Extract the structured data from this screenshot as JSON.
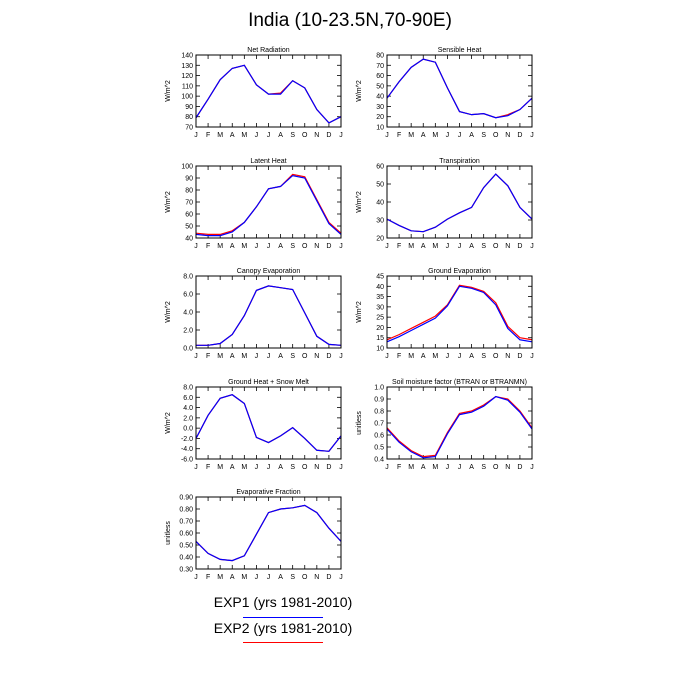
{
  "figure_title": "India (10-23.5N,70-90E)",
  "colors": {
    "exp1": "#0000ff",
    "exp2": "#ff0000"
  },
  "legend": [
    {
      "label": "EXP1 (yrs 1981-2010)",
      "color": "#0000ff"
    },
    {
      "label": "EXP2 (yrs 1981-2010)",
      "color": "#ff0000"
    }
  ],
  "chart_data": [
    {
      "type": "line",
      "title": "Net Radiation",
      "ylabel": "W/m^2",
      "categories": [
        "J",
        "F",
        "M",
        "A",
        "M",
        "J",
        "J",
        "A",
        "S",
        "O",
        "N",
        "D",
        "J"
      ],
      "yticks": [
        "70",
        "80",
        "90",
        "100",
        "110",
        "120",
        "130",
        "140"
      ],
      "ylim": [
        70,
        140
      ],
      "series": [
        {
          "values": [
            79,
            97,
            116,
            127,
            130,
            111,
            102,
            102,
            115,
            108,
            87,
            74,
            80
          ]
        },
        {
          "values": [
            79,
            97,
            116,
            127,
            130,
            111,
            102,
            103,
            115,
            108,
            87,
            74,
            80
          ]
        }
      ]
    },
    {
      "type": "line",
      "title": "Sensible Heat",
      "ylabel": "W/m^2",
      "categories": [
        "J",
        "F",
        "M",
        "A",
        "M",
        "J",
        "J",
        "A",
        "S",
        "O",
        "N",
        "D",
        "J"
      ],
      "yticks": [
        "10",
        "20",
        "30",
        "40",
        "50",
        "60",
        "70",
        "80"
      ],
      "ylim": [
        10,
        80
      ],
      "series": [
        {
          "values": [
            38,
            54,
            68,
            76,
            73,
            48,
            25,
            22,
            23,
            19,
            21,
            27,
            38
          ]
        },
        {
          "values": [
            38,
            54,
            68,
            76,
            73,
            48,
            25,
            22,
            23,
            19,
            22,
            27,
            38
          ]
        }
      ]
    },
    {
      "type": "line",
      "title": "Latent Heat",
      "ylabel": "W/m^2",
      "categories": [
        "J",
        "F",
        "M",
        "A",
        "M",
        "J",
        "J",
        "A",
        "S",
        "O",
        "N",
        "D",
        "J"
      ],
      "yticks": [
        "40",
        "50",
        "60",
        "70",
        "80",
        "90",
        "100"
      ],
      "ylim": [
        40,
        100
      ],
      "series": [
        {
          "values": [
            43,
            42,
            42,
            45,
            53,
            66,
            81,
            83,
            92,
            90,
            71,
            52,
            43
          ]
        },
        {
          "values": [
            44,
            43,
            43,
            46,
            53,
            66,
            81,
            83,
            93,
            91,
            72,
            53,
            44
          ]
        }
      ]
    },
    {
      "type": "line",
      "title": "Transpiration",
      "ylabel": "W/m^2",
      "categories": [
        "J",
        "F",
        "M",
        "A",
        "M",
        "J",
        "J",
        "A",
        "S",
        "O",
        "N",
        "D",
        "J"
      ],
      "yticks": [
        "20",
        "30",
        "40",
        "50",
        "60"
      ],
      "ylim": [
        20,
        60
      ],
      "series": [
        {
          "values": [
            30.5,
            27,
            24,
            23.5,
            26,
            30.5,
            34,
            37,
            48,
            55.5,
            49,
            37,
            30.5
          ]
        },
        {
          "values": [
            30.5,
            27,
            24,
            23.5,
            26,
            30.5,
            34,
            37,
            48,
            55.5,
            49,
            37,
            30.5
          ]
        }
      ]
    },
    {
      "type": "line",
      "title": "Canopy Evaporation",
      "ylabel": "W/m^2",
      "categories": [
        "J",
        "F",
        "M",
        "A",
        "M",
        "J",
        "J",
        "A",
        "S",
        "O",
        "N",
        "D",
        "J"
      ],
      "yticks": [
        "0.0",
        "2.0",
        "4.0",
        "6.0",
        "8.0"
      ],
      "ylim": [
        0,
        8
      ],
      "series": [
        {
          "values": [
            0.3,
            0.3,
            0.5,
            1.5,
            3.6,
            6.4,
            6.9,
            6.7,
            6.5,
            3.9,
            1.3,
            0.4,
            0.3
          ]
        },
        {
          "values": [
            0.3,
            0.3,
            0.5,
            1.5,
            3.6,
            6.4,
            6.9,
            6.7,
            6.5,
            3.9,
            1.3,
            0.4,
            0.3
          ]
        }
      ]
    },
    {
      "type": "line",
      "title": "Ground Evaporation",
      "ylabel": "W/m^2",
      "categories": [
        "J",
        "F",
        "M",
        "A",
        "M",
        "J",
        "J",
        "A",
        "S",
        "O",
        "N",
        "D",
        "J"
      ],
      "yticks": [
        "10",
        "15",
        "20",
        "25",
        "30",
        "35",
        "40",
        "45"
      ],
      "ylim": [
        10,
        45
      ],
      "series": [
        {
          "values": [
            13,
            15.5,
            18.5,
            21.5,
            24.5,
            30.5,
            40,
            39,
            37,
            31,
            19.5,
            14,
            13
          ]
        },
        {
          "values": [
            14,
            16.5,
            19.5,
            22.5,
            25.5,
            31,
            40.5,
            39.5,
            37.5,
            32,
            20.5,
            15,
            14
          ]
        }
      ]
    },
    {
      "type": "line",
      "title": "Ground Heat + Snow Melt",
      "ylabel": "W/m^2",
      "categories": [
        "J",
        "F",
        "M",
        "A",
        "M",
        "J",
        "J",
        "A",
        "S",
        "O",
        "N",
        "D",
        "J"
      ],
      "yticks": [
        "-6.0",
        "-4.0",
        "-2.0",
        "0.0",
        "2.0",
        "4.0",
        "6.0",
        "8.0"
      ],
      "ylim": [
        -6,
        8
      ],
      "series": [
        {
          "values": [
            -2,
            2.5,
            5.8,
            6.5,
            4.8,
            -1.8,
            -2.8,
            -1.5,
            0.1,
            -2,
            -4.3,
            -4.5,
            -1.5
          ]
        },
        {
          "values": [
            -2,
            2.5,
            5.8,
            6.5,
            4.8,
            -1.8,
            -2.8,
            -1.5,
            0.1,
            -2,
            -4.3,
            -4.5,
            -1.5
          ]
        }
      ]
    },
    {
      "type": "line",
      "title": "Soil moisture factor (BTRAN or BTRANMN)",
      "ylabel": "unitless",
      "categories": [
        "J",
        "F",
        "M",
        "A",
        "M",
        "J",
        "J",
        "A",
        "S",
        "O",
        "N",
        "D",
        "J"
      ],
      "yticks": [
        "0.4",
        "0.5",
        "0.6",
        "0.7",
        "0.8",
        "0.9",
        "1.0"
      ],
      "ylim": [
        0.4,
        1.0
      ],
      "series": [
        {
          "values": [
            0.65,
            0.54,
            0.46,
            0.41,
            0.42,
            0.61,
            0.77,
            0.79,
            0.84,
            0.92,
            0.89,
            0.79,
            0.65
          ]
        },
        {
          "values": [
            0.66,
            0.55,
            0.47,
            0.42,
            0.43,
            0.62,
            0.78,
            0.8,
            0.85,
            0.92,
            0.9,
            0.8,
            0.66
          ]
        }
      ]
    },
    {
      "type": "line",
      "title": "Evaporative Fraction",
      "ylabel": "unitless",
      "categories": [
        "J",
        "F",
        "M",
        "A",
        "M",
        "J",
        "J",
        "A",
        "S",
        "O",
        "N",
        "D",
        "J"
      ],
      "yticks": [
        "0.30",
        "0.40",
        "0.50",
        "0.60",
        "0.70",
        "0.80",
        "0.90"
      ],
      "ylim": [
        0.3,
        0.9
      ],
      "series": [
        {
          "values": [
            0.53,
            0.43,
            0.38,
            0.37,
            0.41,
            0.59,
            0.77,
            0.8,
            0.81,
            0.83,
            0.77,
            0.64,
            0.53
          ]
        },
        {
          "values": [
            0.53,
            0.43,
            0.38,
            0.37,
            0.41,
            0.59,
            0.77,
            0.8,
            0.81,
            0.83,
            0.77,
            0.64,
            0.53
          ]
        }
      ]
    }
  ]
}
